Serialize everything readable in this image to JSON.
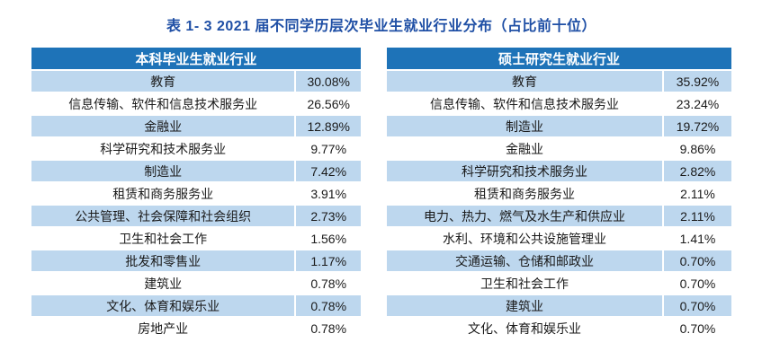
{
  "caption": "表 1- 3 2021 届不同学历层次毕业生就业行业分布（占比前十位）",
  "colors": {
    "title_text": "#1f4fa5",
    "header_bg": "#1e73b8",
    "header_text": "#ffffff",
    "alt_row_bg": "#bdd7ee",
    "row_bg": "#ffffff"
  },
  "tables": [
    {
      "header": "本科毕业生就业行业",
      "rows": [
        {
          "industry": "教育",
          "percent": "30.08%"
        },
        {
          "industry": "信息传输、软件和信息技术服务业",
          "percent": "26.56%"
        },
        {
          "industry": "金融业",
          "percent": "12.89%"
        },
        {
          "industry": "科学研究和技术服务业",
          "percent": "9.77%"
        },
        {
          "industry": "制造业",
          "percent": "7.42%"
        },
        {
          "industry": "租赁和商务服务业",
          "percent": "3.91%"
        },
        {
          "industry": "公共管理、社会保障和社会组织",
          "percent": "2.73%"
        },
        {
          "industry": "卫生和社会工作",
          "percent": "1.56%"
        },
        {
          "industry": "批发和零售业",
          "percent": "1.17%"
        },
        {
          "industry": "建筑业",
          "percent": "0.78%"
        },
        {
          "industry": "文化、体育和娱乐业",
          "percent": "0.78%"
        },
        {
          "industry": "房地产业",
          "percent": "0.78%"
        }
      ]
    },
    {
      "header": "硕士研究生就业行业",
      "rows": [
        {
          "industry": "教育",
          "percent": "35.92%"
        },
        {
          "industry": "信息传输、软件和信息技术服务业",
          "percent": "23.24%"
        },
        {
          "industry": "制造业",
          "percent": "19.72%"
        },
        {
          "industry": "金融业",
          "percent": "9.86%"
        },
        {
          "industry": "科学研究和技术服务业",
          "percent": "2.82%"
        },
        {
          "industry": "租赁和商务服务业",
          "percent": "2.11%"
        },
        {
          "industry": "电力、热力、燃气及水生产和供应业",
          "percent": "2.11%"
        },
        {
          "industry": "水利、环境和公共设施管理业",
          "percent": "1.41%"
        },
        {
          "industry": "交通运输、仓储和邮政业",
          "percent": "0.70%"
        },
        {
          "industry": "卫生和社会工作",
          "percent": "0.70%"
        },
        {
          "industry": "建筑业",
          "percent": "0.70%"
        },
        {
          "industry": "文化、体育和娱乐业",
          "percent": "0.70%"
        }
      ]
    }
  ]
}
